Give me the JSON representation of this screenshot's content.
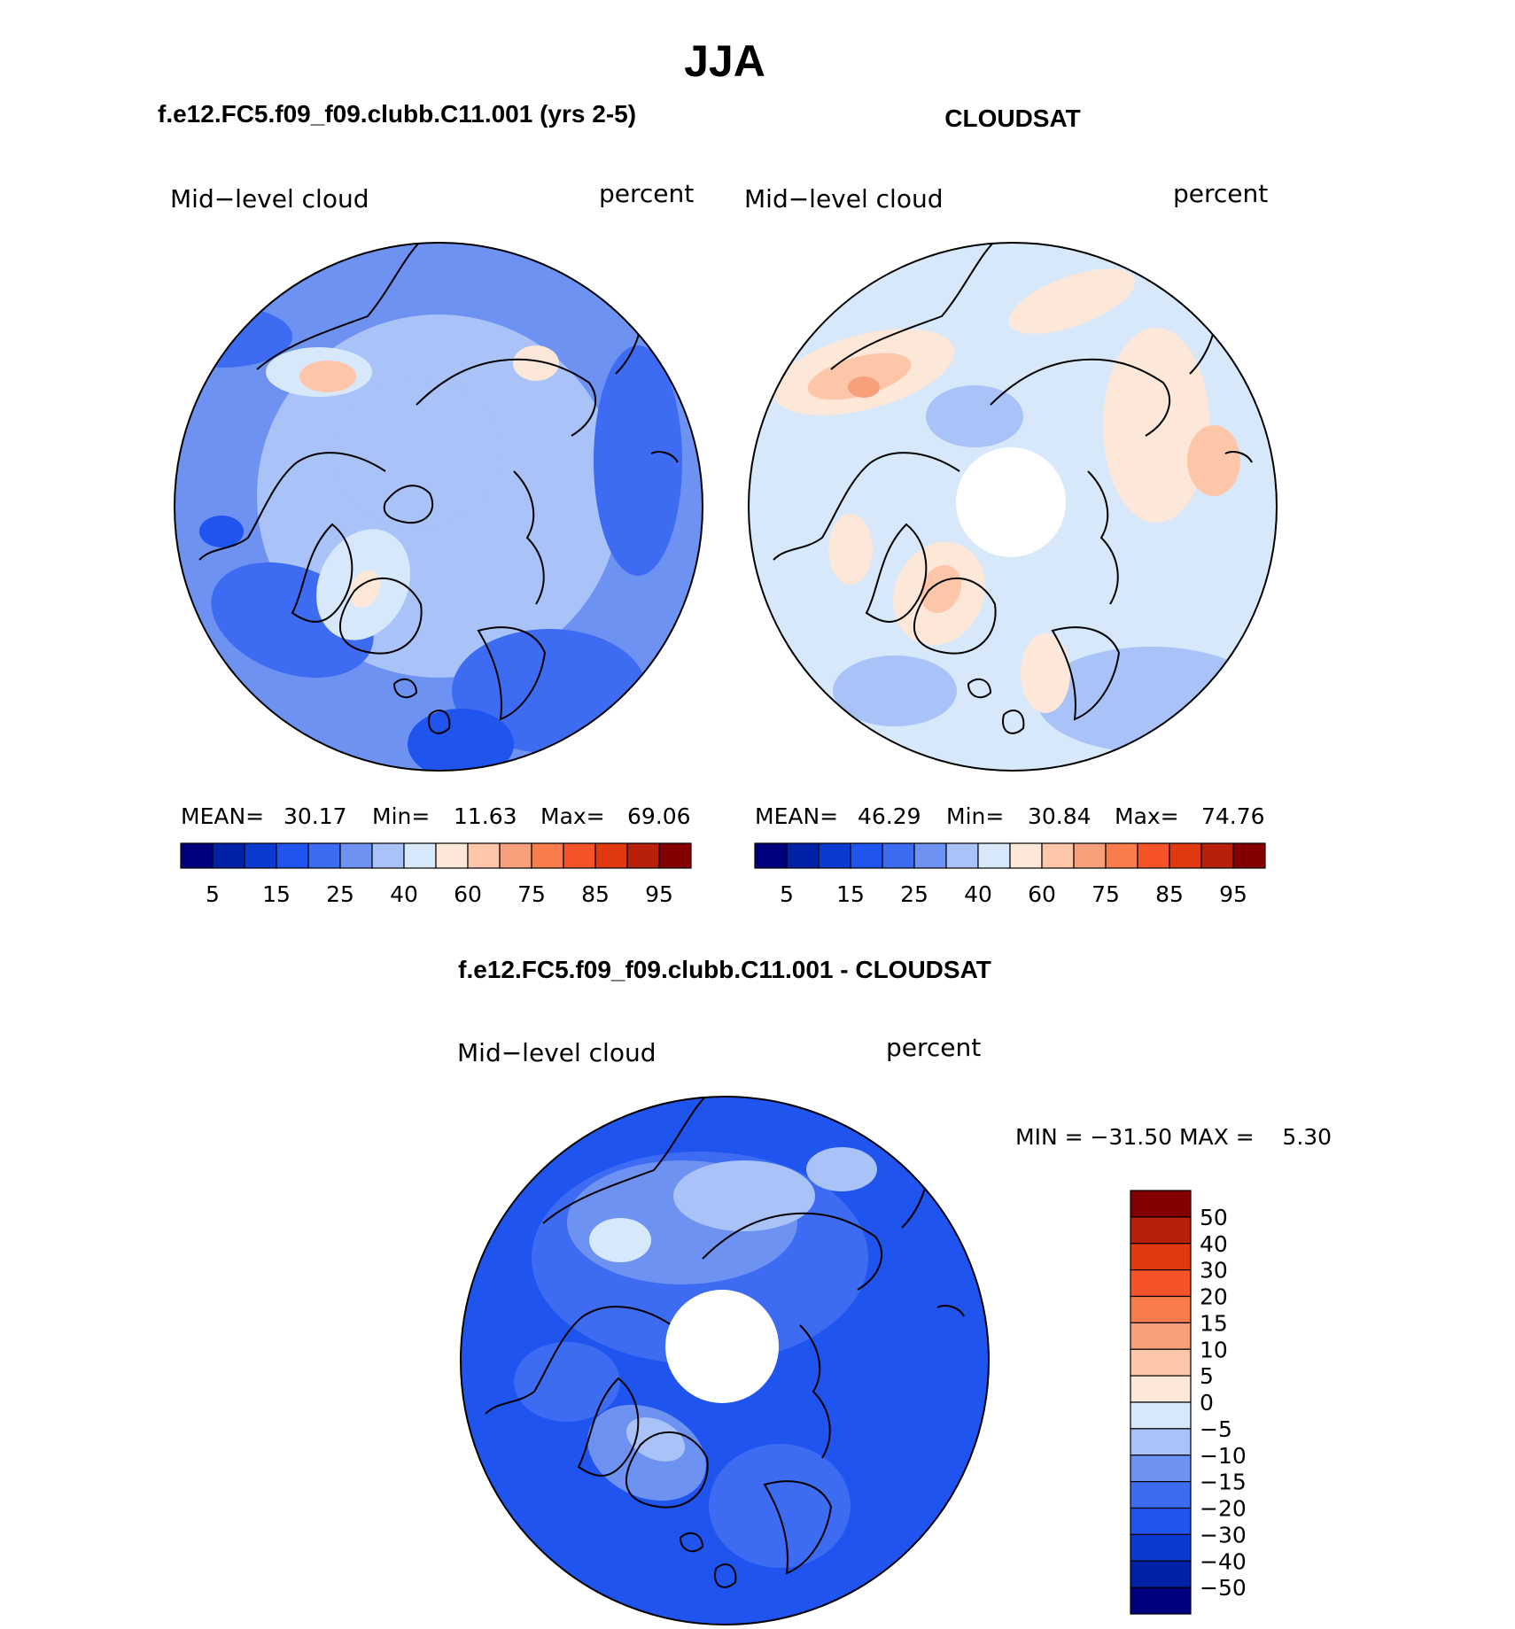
{
  "page": {
    "season": "JJA"
  },
  "chart_data": [
    {
      "type": "heatmap",
      "title": "f.e12.FC5.f09_f09.clubb.C11.001 (yrs 2-5)",
      "variable_label": "Mid−level cloud",
      "units_label": "percent",
      "stats": {
        "mean_label": "MEAN=",
        "mean_value": "30.17",
        "min_label": "Min=",
        "min_value": "11.63",
        "max_label": "Max=",
        "max_value": "69.06"
      },
      "has_polar_gap": false,
      "colorbar_ticks": [
        "5",
        "15",
        "25",
        "40",
        "60",
        "75",
        "85",
        "95"
      ]
    },
    {
      "type": "heatmap",
      "title": "CLOUDSAT",
      "variable_label": "Mid−level cloud",
      "units_label": "percent",
      "stats": {
        "mean_label": "MEAN=",
        "mean_value": "46.29",
        "min_label": "Min=",
        "min_value": "30.84",
        "max_label": "Max=",
        "max_value": "74.76"
      },
      "has_polar_gap": true,
      "colorbar_ticks": [
        "5",
        "15",
        "25",
        "40",
        "60",
        "75",
        "85",
        "95"
      ]
    },
    {
      "type": "heatmap",
      "title": "f.e12.FC5.f09_f09.clubb.C11.001 - CLOUDSAT",
      "variable_label": "Mid−level cloud",
      "units_label": "percent",
      "stats_text": "MIN = −31.50 MAX =    5.30",
      "has_polar_gap": true,
      "colorbar_ticks": [
        "50",
        "40",
        "30",
        "20",
        "15",
        "10",
        "5",
        "0",
        "−5",
        "−10",
        "−15",
        "−20",
        "−30",
        "−40",
        "−50"
      ]
    }
  ],
  "colors": {
    "scale16": [
      "#00007f",
      "#0022a8",
      "#0a3ad0",
      "#1f55ee",
      "#3d6cf3",
      "#6d92f2",
      "#a9c2f8",
      "#d7e8fb",
      "#fde7d8",
      "#fdc6a8",
      "#f8a07c",
      "#f87c4c",
      "#f5532a",
      "#e0380f",
      "#b72109",
      "#840000"
    ],
    "diff16": [
      "#840000",
      "#b72109",
      "#e0380f",
      "#f5532a",
      "#f87c4c",
      "#f8a07c",
      "#fdc6a8",
      "#fde7d8",
      "#d7e8fb",
      "#a9c2f8",
      "#6d92f2",
      "#3d6cf3",
      "#1f55ee",
      "#0a3ad0",
      "#0022a8",
      "#00007f"
    ]
  }
}
